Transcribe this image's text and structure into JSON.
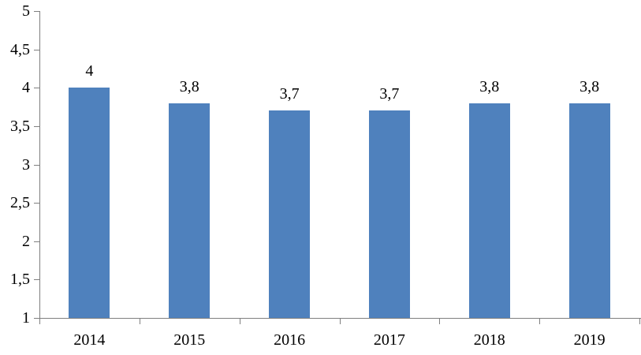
{
  "chart_data": {
    "type": "bar",
    "title": "",
    "xlabel": "",
    "ylabel": "",
    "categories": [
      "2014",
      "2015",
      "2016",
      "2017",
      "2018",
      "2019"
    ],
    "values": [
      4,
      3.8,
      3.7,
      3.7,
      3.8,
      3.8
    ],
    "data_labels": [
      "4",
      "3,8",
      "3,7",
      "3,7",
      "3,8",
      "3,8"
    ],
    "ylim": [
      1,
      5
    ],
    "y_tick_values": [
      1,
      1.5,
      2,
      2.5,
      3,
      3.5,
      4,
      4.5,
      5
    ],
    "y_tick_labels": [
      "1",
      "1,5",
      "2",
      "2,5",
      "3",
      "3,5",
      "4",
      "4,5",
      "5"
    ],
    "decimal_separator": ",",
    "grid": false,
    "legend": "none",
    "colors": {
      "bar_fill": "#4F81BD",
      "axis": "#7F7F7F",
      "text": "#000000",
      "background": "#FFFFFF"
    }
  }
}
